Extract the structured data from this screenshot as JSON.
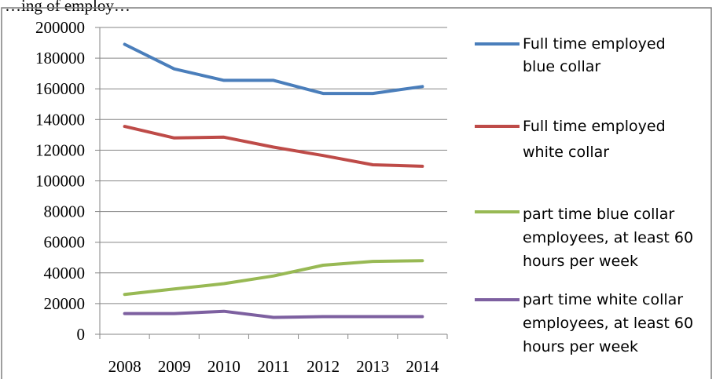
{
  "chart_data": {
    "type": "line",
    "title_fragment": "…ing of employ…",
    "categories": [
      "2008",
      "2009",
      "2010",
      "2011",
      "2012",
      "2013",
      "2014"
    ],
    "ylim": [
      0,
      200000
    ],
    "ytick_labels": [
      "0",
      "20000",
      "40000",
      "60000",
      "80000",
      "100000",
      "120000",
      "140000",
      "160000",
      "180000",
      "200000"
    ],
    "grid": true,
    "legend_position": "right",
    "series": [
      {
        "name": "Full time employed blue collar",
        "legend_lines": [
          "Full time employed",
          "blue collar"
        ],
        "color": "#4a7ebb",
        "values": [
          189000,
          173000,
          165500,
          165500,
          157000,
          157000,
          161500
        ]
      },
      {
        "name": "Full time employed white collar",
        "legend_lines": [
          "Full time employed",
          "white collar"
        ],
        "color": "#be4b48",
        "values": [
          135500,
          128000,
          128500,
          122000,
          116500,
          110500,
          109500
        ]
      },
      {
        "name": "part time blue collar employees, at least 60 hours per week",
        "legend_lines": [
          "part time blue collar",
          "employees, at least 60",
          "hours per week"
        ],
        "color": "#98b954",
        "values": [
          26000,
          29500,
          33000,
          38000,
          45000,
          47500,
          48000
        ]
      },
      {
        "name": "part time white collar employees, at least 60 hours per week",
        "legend_lines": [
          "part time white collar",
          "employees, at least 60",
          "hours per week"
        ],
        "color": "#7d60a0",
        "values": [
          13500,
          13500,
          15000,
          11000,
          11500,
          11500,
          11500
        ]
      }
    ]
  }
}
